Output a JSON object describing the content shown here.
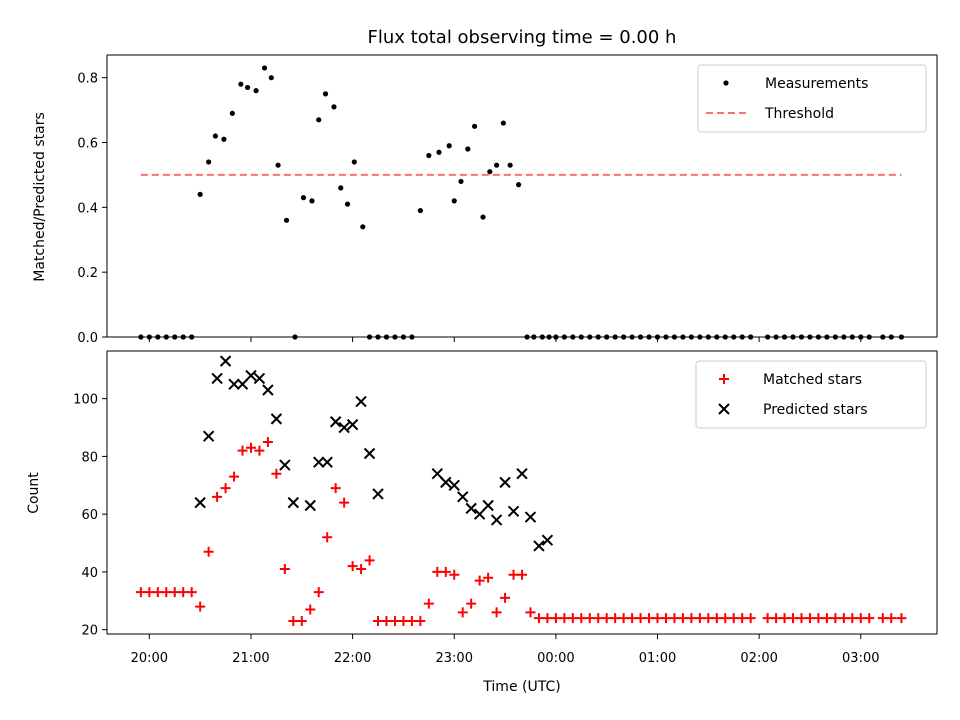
{
  "title": "Flux total observing time = 0.00 h",
  "chart_data": [
    {
      "type": "scatter",
      "ylabel": "Matched/Predicted stars",
      "xlabel": "",
      "ylim": [
        0,
        0.87
      ],
      "yticks": [
        0.0,
        0.2,
        0.4,
        0.6,
        0.8
      ],
      "ytick_labels": [
        "0.0",
        "0.2",
        "0.4",
        "0.6",
        "0.8"
      ],
      "legend": "top-right",
      "series": [
        {
          "name": "Measurements",
          "color": "#000000",
          "marker": "dot",
          "x": [
            "19:55",
            "20:00",
            "20:05",
            "20:10",
            "20:15",
            "20:20",
            "20:25",
            "20:30",
            "20:35",
            "20:39",
            "20:44",
            "20:49",
            "20:54",
            "20:58",
            "21:03",
            "21:08",
            "21:12",
            "21:16",
            "21:21",
            "21:26",
            "21:31",
            "21:36",
            "21:40",
            "21:44",
            "21:49",
            "21:53",
            "21:57",
            "22:01",
            "22:06",
            "22:10",
            "22:15",
            "22:20",
            "22:25",
            "22:30",
            "22:35",
            "22:40",
            "22:45",
            "22:51",
            "22:57",
            "23:00",
            "23:04",
            "23:08",
            "23:12",
            "23:17",
            "23:21",
            "23:25",
            "23:29",
            "23:33",
            "23:38",
            "23:43",
            "23:47",
            "23:52",
            "23:56",
            "00:00",
            "00:05",
            "00:10",
            "00:15",
            "00:20",
            "00:25",
            "00:30",
            "00:35",
            "00:40",
            "00:45",
            "00:50",
            "00:55",
            "01:00",
            "01:05",
            "01:10",
            "01:15",
            "01:20",
            "01:25",
            "01:30",
            "01:35",
            "01:40",
            "01:45",
            "01:50",
            "01:55",
            "02:05",
            "02:10",
            "02:15",
            "02:20",
            "02:25",
            "02:30",
            "02:35",
            "02:40",
            "02:45",
            "02:50",
            "02:55",
            "03:00",
            "03:05",
            "03:13",
            "03:18",
            "03:24"
          ],
          "y": [
            0,
            0,
            0,
            0,
            0,
            0,
            0,
            0.44,
            0.54,
            0.62,
            0.61,
            0.69,
            0.78,
            0.77,
            0.76,
            0.83,
            0.8,
            0.53,
            0.36,
            0,
            0.43,
            0.42,
            0.67,
            0.75,
            0.71,
            0.46,
            0.41,
            0.54,
            0.34,
            0,
            0,
            0,
            0,
            0,
            0,
            0.39,
            0.56,
            0.57,
            0.59,
            0.42,
            0.48,
            0.58,
            0.65,
            0.37,
            0.51,
            0.53,
            0.66,
            0.53,
            0.47,
            0,
            0,
            0,
            0,
            0,
            0,
            0,
            0,
            0,
            0,
            0,
            0,
            0,
            0,
            0,
            0,
            0,
            0,
            0,
            0,
            0,
            0,
            0,
            0,
            0,
            0,
            0,
            0,
            0,
            0,
            0,
            0,
            0,
            0,
            0,
            0,
            0,
            0,
            0,
            0,
            0,
            0,
            0,
            0
          ]
        },
        {
          "name": "Threshold",
          "color": "#ff7070",
          "style": "dashed",
          "x": [
            "19:55",
            "03:24"
          ],
          "y": [
            0.5,
            0.5
          ]
        }
      ]
    },
    {
      "type": "scatter",
      "ylabel": "Count",
      "xlabel": "Time (UTC)",
      "ylim": [
        18.5,
        116.5
      ],
      "yticks": [
        20,
        40,
        60,
        80,
        100
      ],
      "ytick_labels": [
        "20",
        "40",
        "60",
        "80",
        "100"
      ],
      "xlim": [
        "19:35",
        "03:45"
      ],
      "xticks": [
        "20:00",
        "21:00",
        "22:00",
        "23:00",
        "00:00",
        "01:00",
        "02:00",
        "03:00"
      ],
      "xtick_labels": [
        "20:00",
        "21:00",
        "22:00",
        "23:00",
        "00:00",
        "01:00",
        "02:00",
        "03:00"
      ],
      "legend": "top-right",
      "series": [
        {
          "name": "Matched stars",
          "color": "#ff0000",
          "marker": "plus",
          "x": [
            "19:55",
            "20:00",
            "20:05",
            "20:10",
            "20:15",
            "20:20",
            "20:25",
            "20:30",
            "20:35",
            "20:40",
            "20:45",
            "20:50",
            "20:55",
            "21:00",
            "21:05",
            "21:10",
            "21:15",
            "21:20",
            "21:25",
            "21:30",
            "21:35",
            "21:40",
            "21:45",
            "21:50",
            "21:55",
            "22:00",
            "22:05",
            "22:10",
            "22:15",
            "22:20",
            "22:25",
            "22:30",
            "22:35",
            "22:40",
            "22:45",
            "22:50",
            "22:55",
            "23:00",
            "23:05",
            "23:10",
            "23:15",
            "23:20",
            "23:25",
            "23:30",
            "23:35",
            "23:40",
            "23:45",
            "23:50",
            "23:55",
            "00:00",
            "00:05",
            "00:10",
            "00:15",
            "00:20",
            "00:25",
            "00:30",
            "00:35",
            "00:40",
            "00:45",
            "00:50",
            "00:55",
            "01:00",
            "01:05",
            "01:10",
            "01:15",
            "01:20",
            "01:25",
            "01:30",
            "01:35",
            "01:40",
            "01:45",
            "01:50",
            "01:55",
            "02:05",
            "02:10",
            "02:15",
            "02:20",
            "02:25",
            "02:30",
            "02:35",
            "02:40",
            "02:45",
            "02:50",
            "02:55",
            "03:00",
            "03:05",
            "03:13",
            "03:18",
            "03:24"
          ],
          "y": [
            33,
            33,
            33,
            33,
            33,
            33,
            33,
            28,
            47,
            66,
            69,
            73,
            82,
            83,
            82,
            85,
            74,
            41,
            23,
            23,
            27,
            33,
            52,
            69,
            64,
            42,
            41,
            44,
            23,
            23,
            23,
            23,
            23,
            23,
            29,
            40,
            40,
            39,
            26,
            29,
            37,
            38,
            26,
            31,
            39,
            39,
            26,
            24,
            24,
            24,
            24,
            24,
            24,
            24,
            24,
            24,
            24,
            24,
            24,
            24,
            24,
            24,
            24,
            24,
            24,
            24,
            24,
            24,
            24,
            24,
            24,
            24,
            24,
            24,
            24,
            24,
            24,
            24,
            24,
            24,
            24,
            24,
            24,
            24,
            24,
            24,
            24,
            24,
            24
          ]
        },
        {
          "name": "Predicted stars",
          "color": "#000000",
          "marker": "x",
          "x": [
            "20:30",
            "20:35",
            "20:40",
            "20:45",
            "20:50",
            "20:55",
            "21:00",
            "21:05",
            "21:10",
            "21:15",
            "21:20",
            "21:25",
            "21:35",
            "21:40",
            "21:45",
            "21:50",
            "21:55",
            "22:00",
            "22:05",
            "22:10",
            "22:15",
            "22:50",
            "22:55",
            "23:00",
            "23:05",
            "23:10",
            "23:15",
            "23:20",
            "23:25",
            "23:30",
            "23:35",
            "23:40",
            "23:45",
            "23:50",
            "23:55"
          ],
          "y": [
            64,
            87,
            107,
            113,
            105,
            105,
            108,
            107,
            103,
            93,
            77,
            64,
            63,
            78,
            78,
            92,
            90,
            91,
            99,
            81,
            67,
            74,
            71,
            70,
            66,
            62,
            60,
            63,
            58,
            71,
            61,
            74,
            59,
            49,
            51
          ]
        }
      ]
    }
  ]
}
